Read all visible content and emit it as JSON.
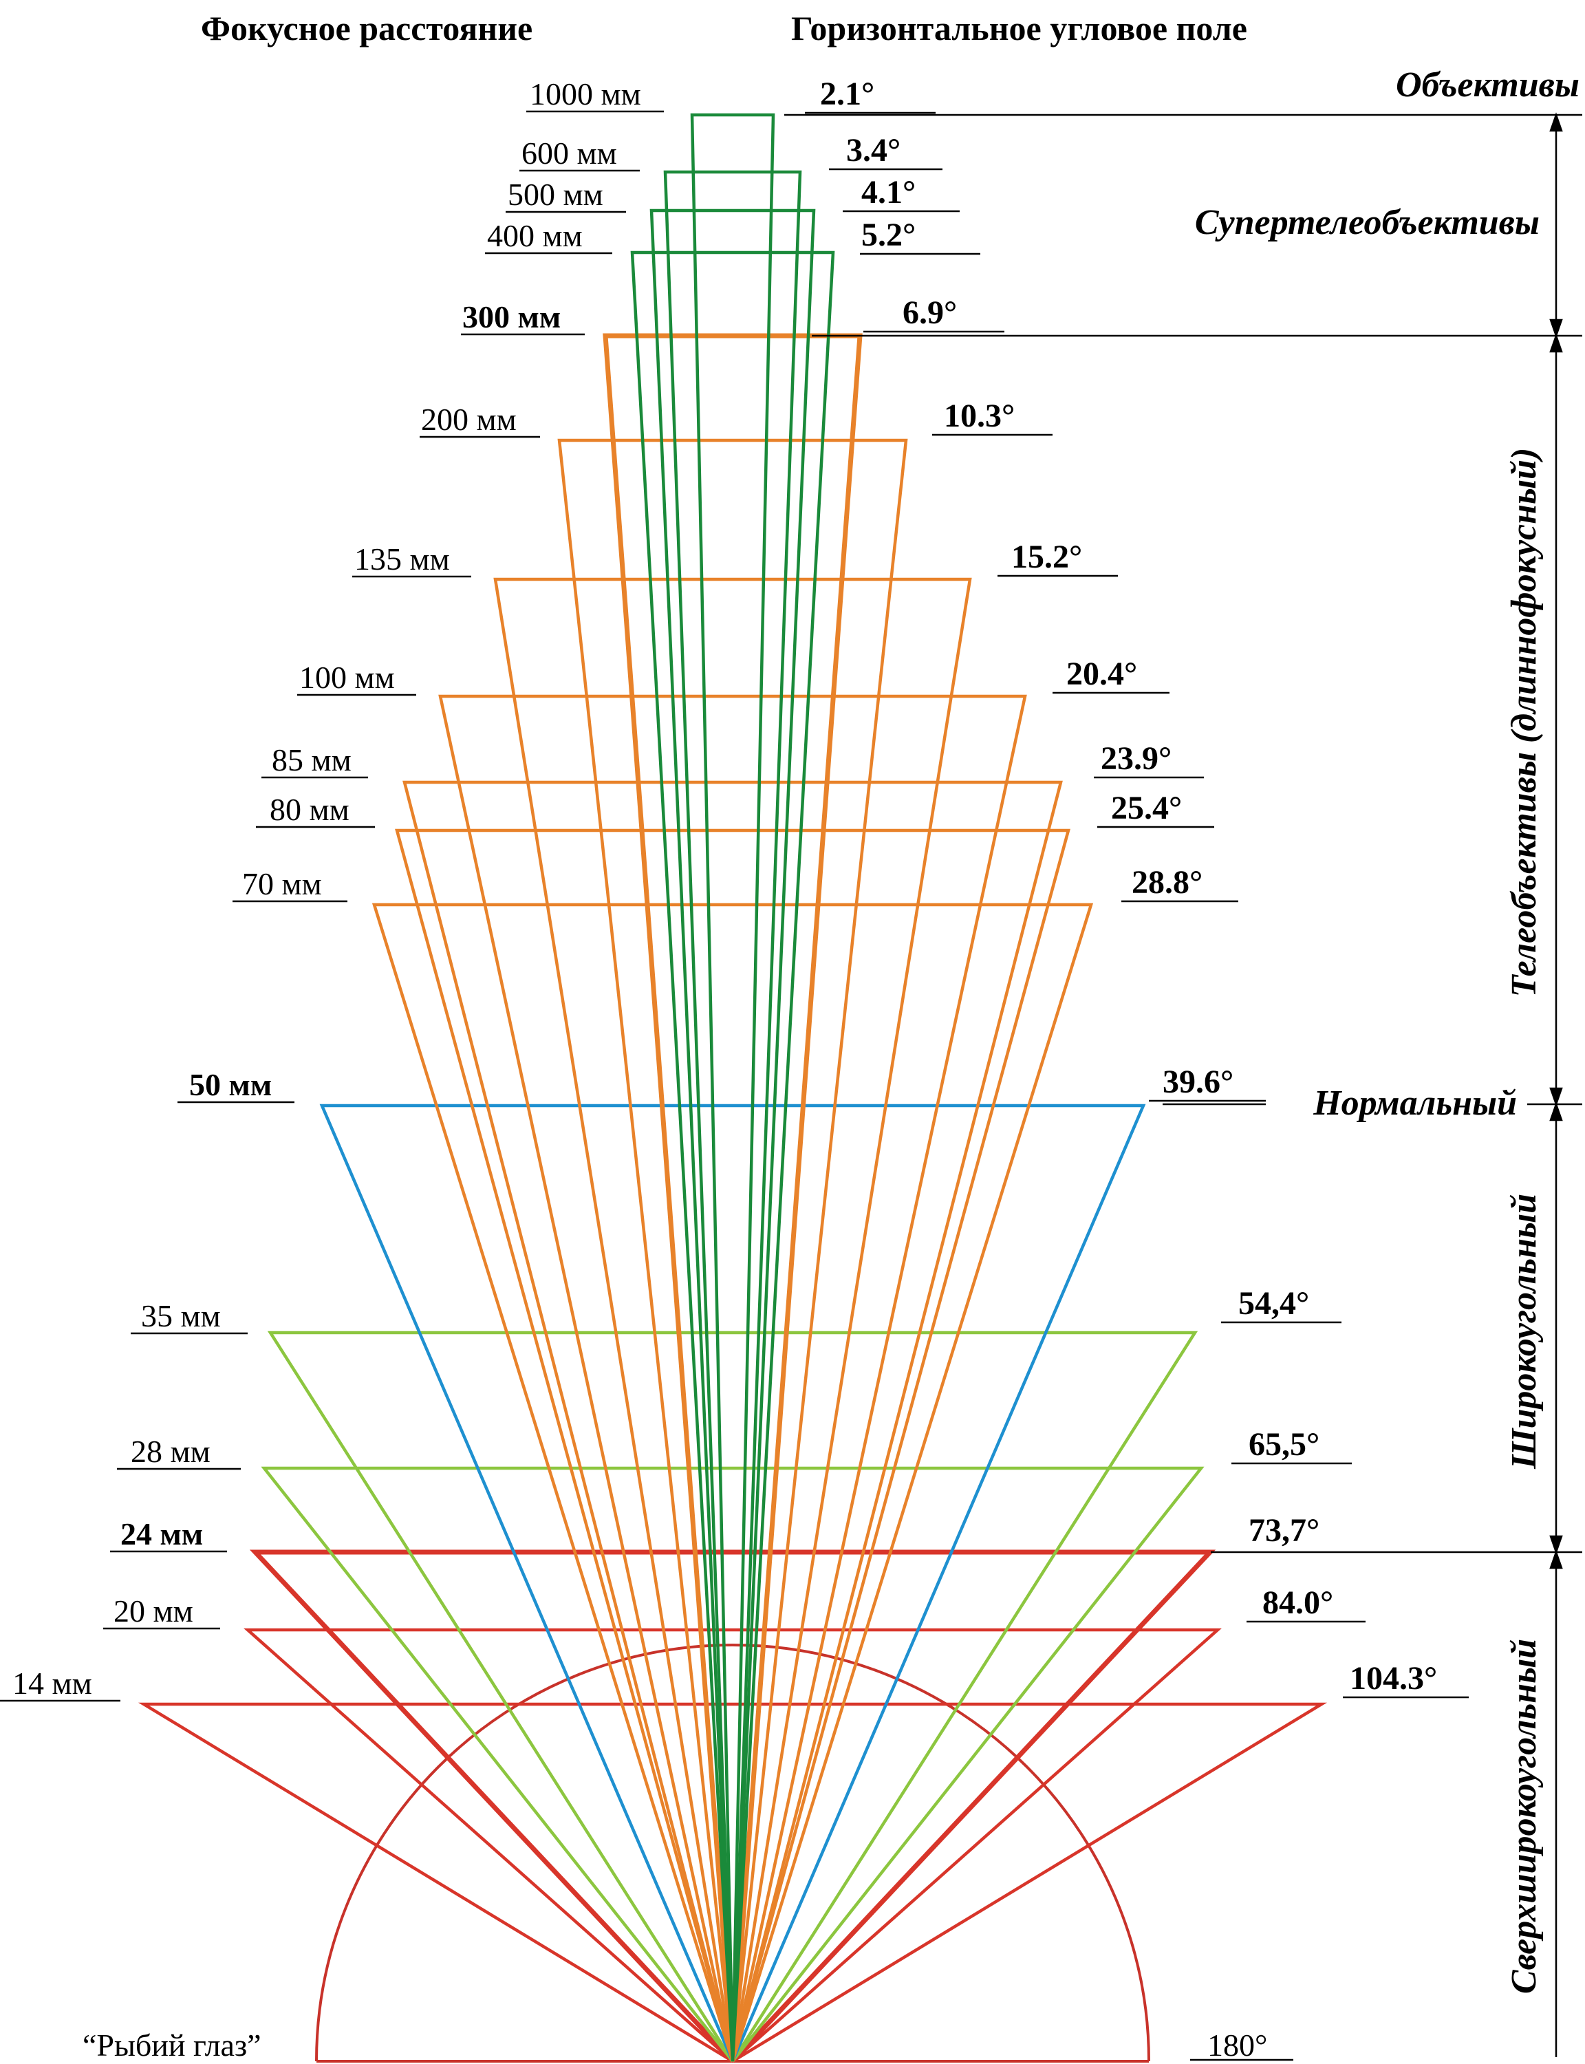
{
  "headers": {
    "focal_length": "Фокусное расстояние",
    "angle_of_view": "Горизонтальное угловое поле"
  },
  "categories": [
    {
      "key": "lenses",
      "label": "Объективы"
    },
    {
      "key": "supertele",
      "label": "Супертелеобъективы"
    },
    {
      "key": "tele",
      "label": "Телеобъективы (длиннофокусный)"
    },
    {
      "key": "normal",
      "label": "Нормальный"
    },
    {
      "key": "wide",
      "label": "Широкоугольный"
    },
    {
      "key": "ultrawide",
      "label": "Сверхширокоугольный"
    }
  ],
  "lenses": [
    {
      "focal": "1000 мм",
      "angle": "2.1°",
      "color": "#1a8a3a",
      "bold_focal": false
    },
    {
      "focal": "600 мм",
      "angle": "3.4°",
      "color": "#1a8a3a",
      "bold_focal": false
    },
    {
      "focal": "500 мм",
      "angle": "4.1°",
      "color": "#1a8a3a",
      "bold_focal": false
    },
    {
      "focal": "400 мм",
      "angle": "5.2°",
      "color": "#1a8a3a",
      "bold_focal": false
    },
    {
      "focal": "300 мм",
      "angle": "6.9°",
      "color": "#e8822a",
      "bold_focal": true
    },
    {
      "focal": "200 мм",
      "angle": "10.3°",
      "color": "#e8822a",
      "bold_focal": false
    },
    {
      "focal": "135 мм",
      "angle": "15.2°",
      "color": "#e8822a",
      "bold_focal": false
    },
    {
      "focal": "100 мм",
      "angle": "20.4°",
      "color": "#e8822a",
      "bold_focal": false
    },
    {
      "focal": "85 мм",
      "angle": "23.9°",
      "color": "#e8822a",
      "bold_focal": false
    },
    {
      "focal": "80 мм",
      "angle": "25.4°",
      "color": "#e8822a",
      "bold_focal": false
    },
    {
      "focal": "70 мм",
      "angle": "28.8°",
      "color": "#e8822a",
      "bold_focal": false
    },
    {
      "focal": "50 мм",
      "angle": "39.6°",
      "color": "#1e90d0",
      "bold_focal": true
    },
    {
      "focal": "35 мм",
      "angle": "54,4°",
      "color": "#8cc63f",
      "bold_focal": false
    },
    {
      "focal": "28 мм",
      "angle": "65,5°",
      "color": "#8cc63f",
      "bold_focal": false
    },
    {
      "focal": "24 мм",
      "angle": "73,7°",
      "color": "#d8352a",
      "bold_focal": true
    },
    {
      "focal": "20 мм",
      "angle": "84.0°",
      "color": "#d8352a",
      "bold_focal": false
    },
    {
      "focal": "14 мм",
      "angle": "104.3°",
      "color": "#d8352a",
      "bold_focal": false
    }
  ],
  "fisheye": {
    "label": "“Рыбий глаз”",
    "angle": "180°",
    "color": "#c8322a"
  }
}
